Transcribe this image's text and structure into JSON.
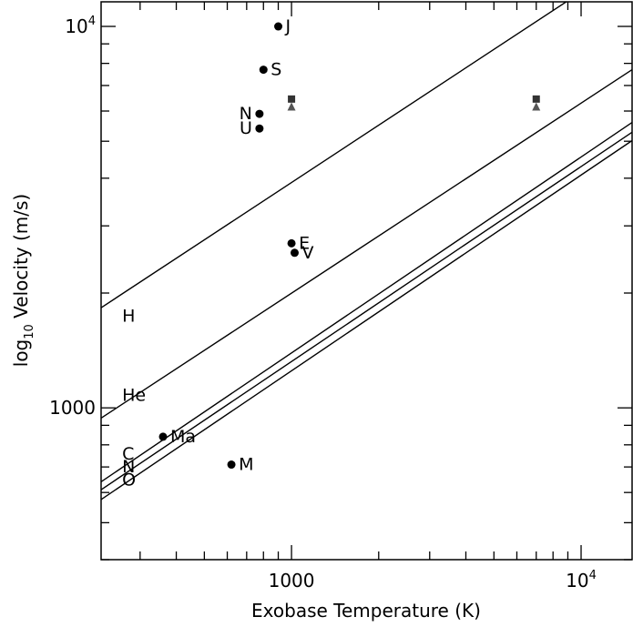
{
  "chart_data": {
    "type": "scatter",
    "title": "",
    "xlabel": "Exobase Temperature (K)",
    "ylabel_prefix": "log",
    "ylabel_sub": "10",
    "ylabel_rest": " Velocity (m/s)",
    "xscale": "log",
    "yscale": "log",
    "xlim": [
      220,
      15000
    ],
    "ylim": [
      400,
      11600
    ],
    "grid": false,
    "x_ticks": [
      {
        "value": 1000,
        "label": "1000"
      },
      {
        "value": 10000,
        "label": "10",
        "sup": "4"
      }
    ],
    "y_ticks": [
      {
        "value": 1000,
        "label": "1000"
      },
      {
        "value": 10000,
        "label": "10",
        "sup": "4"
      }
    ],
    "lines": [
      {
        "name": "H",
        "label_at": [
          260,
          1750
        ],
        "points": [
          [
            220,
            1830
          ],
          [
            12400,
            13700
          ]
        ]
      },
      {
        "name": "He",
        "label_at": [
          260,
          1085
        ],
        "points": [
          [
            220,
            940
          ],
          [
            15000,
            7700
          ]
        ]
      },
      {
        "name": "C",
        "label_at": [
          260,
          760
        ],
        "points": [
          [
            220,
            640
          ],
          [
            15000,
            5600
          ]
        ]
      },
      {
        "name": "N",
        "label_at": [
          260,
          705
        ],
        "points": [
          [
            220,
            610
          ],
          [
            15000,
            5280
          ]
        ]
      },
      {
        "name": "O",
        "label_at": [
          260,
          650
        ],
        "points": [
          [
            220,
            575
          ],
          [
            15000,
            5020
          ]
        ]
      }
    ],
    "points": [
      {
        "label": "J",
        "x": 900,
        "y": 10000,
        "marker": "circle"
      },
      {
        "label": "S",
        "x": 800,
        "y": 7700,
        "marker": "circle"
      },
      {
        "label": "N",
        "x": 775,
        "y": 5900,
        "marker": "circle"
      },
      {
        "label": "U",
        "x": 775,
        "y": 5400,
        "marker": "circle"
      },
      {
        "label": "E",
        "x": 1000,
        "y": 2700,
        "marker": "circle"
      },
      {
        "label": "V",
        "x": 1025,
        "y": 2550,
        "marker": "circle"
      },
      {
        "label": "Ma",
        "x": 360,
        "y": 840,
        "marker": "circle"
      },
      {
        "label": "M",
        "x": 620,
        "y": 710,
        "marker": "circle"
      }
    ],
    "extra_markers": [
      {
        "x": 1000,
        "y": 6450,
        "marker": "square",
        "color": "#333333"
      },
      {
        "x": 1000,
        "y": 6150,
        "marker": "triangle",
        "color": "#555555"
      },
      {
        "x": 7000,
        "y": 6450,
        "marker": "square",
        "color": "#333333"
      },
      {
        "x": 7000,
        "y": 6150,
        "marker": "triangle",
        "color": "#555555"
      }
    ]
  }
}
